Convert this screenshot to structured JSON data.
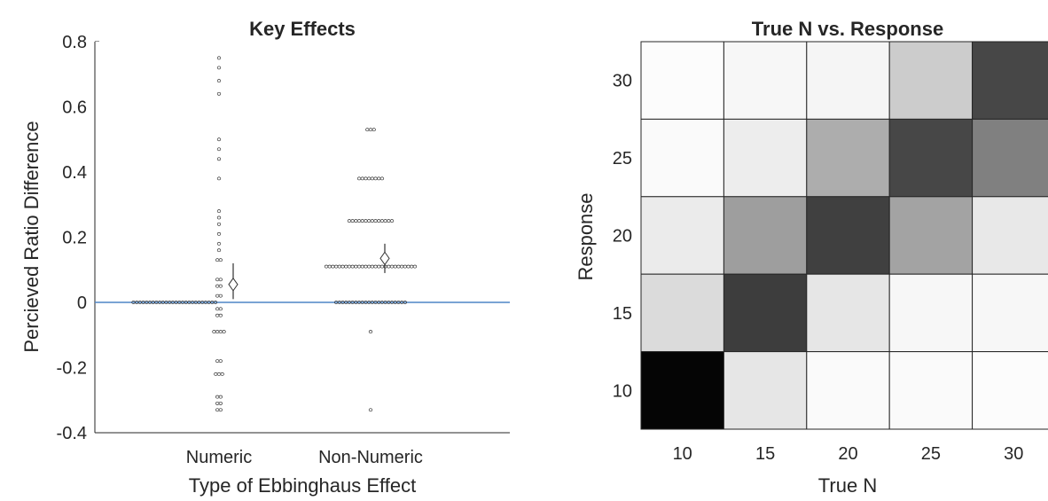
{
  "chart_data": [
    {
      "type": "scatter",
      "title": "Key Effects",
      "xlabel": "Type of Ebbinghaus Effect",
      "ylabel": "Percieved Ratio Difference",
      "categories": [
        "Numeric",
        "Non-Numeric"
      ],
      "ylim": [
        -0.4,
        0.8
      ],
      "yticks": [
        "-0.4",
        "-0.2",
        "0",
        "0.2",
        "0.4",
        "0.6",
        "0.8"
      ],
      "yticks_values": [
        -0.4,
        -0.2,
        0,
        0.2,
        0.4,
        0.6,
        0.8
      ],
      "reference_line": {
        "y": 0,
        "color": "#4f86c6"
      },
      "points": [
        {
          "category": "Numeric",
          "spread": "left",
          "y": 0,
          "count": 26
        },
        {
          "category": "Numeric",
          "y": 0.75,
          "count": 1
        },
        {
          "category": "Numeric",
          "y": 0.72,
          "count": 1
        },
        {
          "category": "Numeric",
          "y": 0.68,
          "count": 1
        },
        {
          "category": "Numeric",
          "y": 0.64,
          "count": 1
        },
        {
          "category": "Numeric",
          "y": 0.5,
          "count": 1
        },
        {
          "category": "Numeric",
          "y": 0.47,
          "count": 1
        },
        {
          "category": "Numeric",
          "y": 0.44,
          "count": 1
        },
        {
          "category": "Numeric",
          "y": 0.38,
          "count": 1
        },
        {
          "category": "Numeric",
          "y": 0.28,
          "count": 1
        },
        {
          "category": "Numeric",
          "y": 0.26,
          "count": 1
        },
        {
          "category": "Numeric",
          "y": 0.24,
          "count": 1
        },
        {
          "category": "Numeric",
          "y": 0.21,
          "count": 1
        },
        {
          "category": "Numeric",
          "y": 0.18,
          "count": 1
        },
        {
          "category": "Numeric",
          "y": 0.16,
          "count": 1
        },
        {
          "category": "Numeric",
          "y": 0.13,
          "count": 2
        },
        {
          "category": "Numeric",
          "y": 0.07,
          "count": 2
        },
        {
          "category": "Numeric",
          "y": 0.05,
          "count": 2
        },
        {
          "category": "Numeric",
          "y": 0.02,
          "count": 2
        },
        {
          "category": "Numeric",
          "y": -0.02,
          "count": 2
        },
        {
          "category": "Numeric",
          "y": -0.04,
          "count": 2
        },
        {
          "category": "Numeric",
          "y": -0.09,
          "count": 4
        },
        {
          "category": "Numeric",
          "y": -0.18,
          "count": 2
        },
        {
          "category": "Numeric",
          "y": -0.22,
          "count": 3
        },
        {
          "category": "Numeric",
          "y": -0.29,
          "count": 2
        },
        {
          "category": "Numeric",
          "y": -0.31,
          "count": 2
        },
        {
          "category": "Numeric",
          "y": -0.33,
          "count": 2
        },
        {
          "category": "Non-Numeric",
          "y": 0.53,
          "count": 3
        },
        {
          "category": "Non-Numeric",
          "y": 0.38,
          "count": 8
        },
        {
          "category": "Non-Numeric",
          "y": 0.25,
          "count": 14
        },
        {
          "category": "Non-Numeric",
          "y": 0.11,
          "count": 28
        },
        {
          "category": "Non-Numeric",
          "y": 0,
          "count": 22
        },
        {
          "category": "Non-Numeric",
          "y": -0.09,
          "count": 1
        },
        {
          "category": "Non-Numeric",
          "y": -0.33,
          "count": 1
        }
      ],
      "means": [
        {
          "category": "Numeric",
          "mean": 0.055,
          "ci": [
            0.01,
            0.12
          ]
        },
        {
          "category": "Non-Numeric",
          "mean": 0.135,
          "ci": [
            0.09,
            0.18
          ]
        }
      ]
    },
    {
      "type": "heatmap",
      "title": "True N vs. Response",
      "xlabel": "True N",
      "ylabel": "Response",
      "x_categories": [
        "10",
        "15",
        "20",
        "25",
        "30"
      ],
      "y_categories": [
        "10",
        "15",
        "20",
        "25",
        "30"
      ],
      "values_note": "darkness 0-1, rows listed from Response 30 (top) to 10 (bottom)",
      "values": [
        [
          0.01,
          0.03,
          0.04,
          0.2,
          0.72
        ],
        [
          0.02,
          0.07,
          0.32,
          0.72,
          0.5
        ],
        [
          0.08,
          0.38,
          0.75,
          0.36,
          0.09
        ],
        [
          0.14,
          0.76,
          0.1,
          0.03,
          0.03
        ],
        [
          0.98,
          0.1,
          0.02,
          0.02,
          0.01
        ]
      ]
    }
  ]
}
